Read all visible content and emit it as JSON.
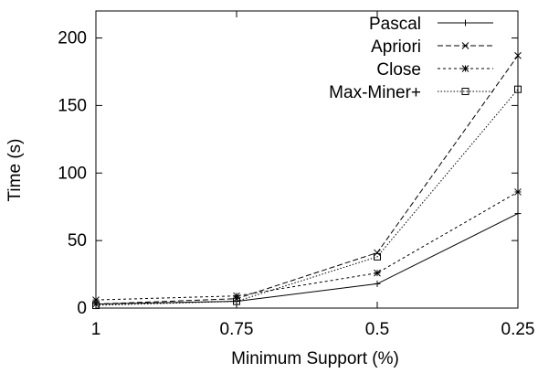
{
  "chart_data": {
    "type": "line",
    "xlabel": "Minimum Support (%)",
    "ylabel": "Time (s)",
    "x": [
      1,
      0.75,
      0.5,
      0.25
    ],
    "x_tick_labels": [
      "1",
      "0.75",
      "0.5",
      "0.25"
    ],
    "y_ticks": [
      0,
      50,
      100,
      150,
      200
    ],
    "ylim": [
      0,
      220
    ],
    "legend_position": "top-right",
    "grid": false,
    "series": [
      {
        "name": "Pascal",
        "values": [
          3,
          5,
          18,
          70
        ],
        "dash": "",
        "marker": "plus"
      },
      {
        "name": "Apriori",
        "values": [
          3,
          7,
          41,
          187
        ],
        "dash": "6,3",
        "marker": "cross"
      },
      {
        "name": "Close",
        "values": [
          6,
          9,
          26,
          86
        ],
        "dash": "3,3",
        "marker": "star"
      },
      {
        "name": "Max-Miner+",
        "values": [
          2,
          5,
          38,
          162
        ],
        "dash": "1.5,2",
        "marker": "square"
      }
    ]
  }
}
